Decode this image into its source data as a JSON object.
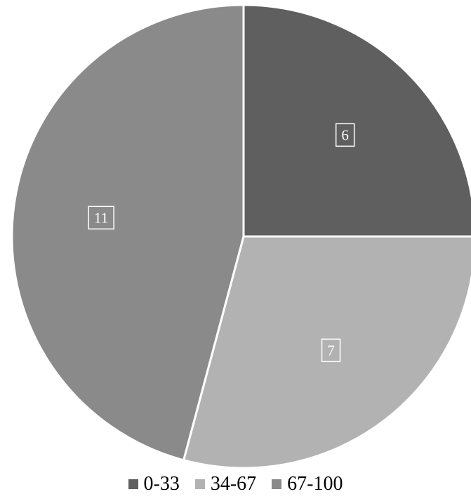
{
  "chart_data": {
    "type": "pie",
    "categories": [
      "0-33",
      "34-67",
      "67-100"
    ],
    "values": [
      6,
      7,
      11
    ],
    "colors": [
      "#5f5f5f",
      "#b2b2b2",
      "#8a8a8a"
    ],
    "start_angle_deg": 0,
    "direction": "clockwise",
    "data_labels": true,
    "legend_position": "bottom",
    "title": ""
  }
}
